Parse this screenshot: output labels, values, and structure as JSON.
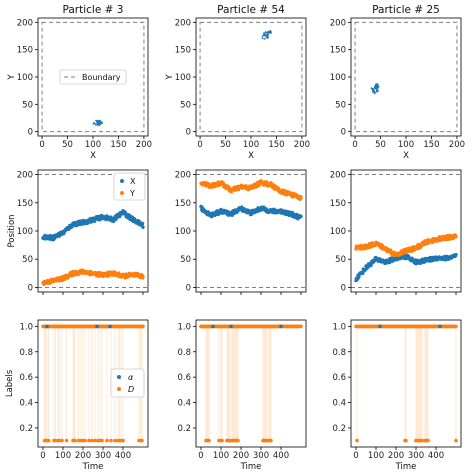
{
  "colors": {
    "blue": "#1f77b4",
    "orange": "#ff7f0e",
    "boundary": "#7f7f7f"
  },
  "chart_data": [
    {
      "type": "line",
      "title": "Particle # 3",
      "xlabel": "X",
      "ylabel": "Y",
      "xlim": [
        -8,
        208
      ],
      "ylim": [
        -8,
        208
      ],
      "xticks": [
        0,
        50,
        100,
        150,
        200
      ],
      "yticks": [
        0,
        50,
        100,
        150,
        200
      ],
      "boundary": [
        0,
        200
      ],
      "legend": [
        "Boundary"
      ],
      "legend_position": "center-right",
      "trajectory": {
        "x_center": 112,
        "y_center": 20,
        "x_spread": 22,
        "y_spread": 11
      }
    },
    {
      "type": "line",
      "title": "Particle # 54",
      "xlabel": "X",
      "ylabel": "Y",
      "xlim": [
        -8,
        208
      ],
      "ylim": [
        -8,
        208
      ],
      "xticks": [
        0,
        50,
        100,
        150,
        200
      ],
      "yticks": [
        0,
        50,
        100,
        150,
        200
      ],
      "boundary": [
        0,
        200
      ],
      "trajectory": {
        "x_center": 133,
        "y_center": 177,
        "x_spread": 11,
        "y_spread": 15
      }
    },
    {
      "type": "line",
      "title": "Particle # 25",
      "xlabel": "X",
      "ylabel": "",
      "xlim": [
        -8,
        208
      ],
      "ylim": [
        -8,
        208
      ],
      "xticks": [
        0,
        50,
        100,
        150,
        200
      ],
      "yticks": [
        0,
        50,
        100,
        150,
        200
      ],
      "boundary": [
        0,
        200
      ],
      "trajectory": {
        "x_center": 40,
        "y_center": 78,
        "x_spread": 13,
        "y_spread": 16
      }
    },
    {
      "type": "scatter",
      "title": "",
      "xlabel": "",
      "ylabel": "Position",
      "xlim": [
        -25,
        525
      ],
      "ylim": [
        -8,
        208
      ],
      "xticks": [
        0,
        100,
        200,
        300,
        400,
        500
      ],
      "yticks": [
        0,
        50,
        100,
        150,
        200
      ],
      "boundary": [
        0,
        200
      ],
      "legend": [
        "X",
        "Y"
      ],
      "legend_position": "top-right",
      "series": [
        {
          "name": "X",
          "points": [
            [
              0,
              90
            ],
            [
              50,
              88
            ],
            [
              100,
              97
            ],
            [
              150,
              112
            ],
            [
              200,
              115
            ],
            [
              250,
              120
            ],
            [
              300,
              125
            ],
            [
              350,
              120
            ],
            [
              400,
              133
            ],
            [
              450,
              120
            ],
            [
              500,
              110
            ]
          ]
        },
        {
          "name": "Y",
          "points": [
            [
              0,
              8
            ],
            [
              50,
              12
            ],
            [
              100,
              16
            ],
            [
              150,
              25
            ],
            [
              200,
              28
            ],
            [
              250,
              25
            ],
            [
              300,
              22
            ],
            [
              350,
              25
            ],
            [
              400,
              20
            ],
            [
              450,
              22
            ],
            [
              500,
              20
            ]
          ]
        }
      ]
    },
    {
      "type": "scatter",
      "title": "",
      "xlabel": "",
      "ylabel": "",
      "xlim": [
        -25,
        525
      ],
      "ylim": [
        -8,
        208
      ],
      "xticks": [
        0,
        100,
        200,
        300,
        400,
        500
      ],
      "yticks": [
        0,
        50,
        100,
        150,
        200
      ],
      "boundary": [
        0,
        200
      ],
      "series": [
        {
          "name": "X",
          "points": [
            [
              0,
              140
            ],
            [
              50,
              128
            ],
            [
              100,
              135
            ],
            [
              150,
              130
            ],
            [
              200,
              140
            ],
            [
              250,
              132
            ],
            [
              300,
              140
            ],
            [
              350,
              135
            ],
            [
              400,
              135
            ],
            [
              450,
              130
            ],
            [
              500,
              123
            ]
          ]
        },
        {
          "name": "Y",
          "points": [
            [
              0,
              185
            ],
            [
              50,
              180
            ],
            [
              100,
              185
            ],
            [
              150,
              172
            ],
            [
              200,
              178
            ],
            [
              250,
              176
            ],
            [
              300,
              186
            ],
            [
              350,
              182
            ],
            [
              400,
              170
            ],
            [
              450,
              165
            ],
            [
              500,
              158
            ]
          ]
        }
      ]
    },
    {
      "type": "scatter",
      "title": "",
      "xlabel": "",
      "ylabel": "",
      "xlim": [
        -25,
        525
      ],
      "ylim": [
        -8,
        208
      ],
      "xticks": [
        0,
        100,
        200,
        300,
        400,
        500
      ],
      "yticks": [
        0,
        50,
        100,
        150,
        200
      ],
      "boundary": [
        0,
        200
      ],
      "series": [
        {
          "name": "X",
          "points": [
            [
              0,
              15
            ],
            [
              50,
              35
            ],
            [
              100,
              50
            ],
            [
              150,
              45
            ],
            [
              200,
              52
            ],
            [
              250,
              55
            ],
            [
              300,
              45
            ],
            [
              350,
              48
            ],
            [
              400,
              52
            ],
            [
              450,
              52
            ],
            [
              500,
              55
            ]
          ]
        },
        {
          "name": "Y",
          "points": [
            [
              0,
              70
            ],
            [
              50,
              72
            ],
            [
              100,
              78
            ],
            [
              150,
              68
            ],
            [
              200,
              58
            ],
            [
              250,
              65
            ],
            [
              300,
              70
            ],
            [
              350,
              80
            ],
            [
              400,
              85
            ],
            [
              450,
              88
            ],
            [
              500,
              90
            ]
          ]
        }
      ]
    },
    {
      "type": "scatter",
      "title": "",
      "xlabel": "Time",
      "ylabel": "Labels",
      "xlim": [
        -25,
        525
      ],
      "ylim": [
        0.05,
        1.05
      ],
      "xticks": [
        0,
        100,
        200,
        300,
        400
      ],
      "yticks": [
        0.2,
        0.4,
        0.6,
        0.8,
        1.0
      ],
      "legend": [
        "α",
        "D"
      ],
      "legend_position": "center-right",
      "alpha_value": 1.0,
      "d_high": 1.0,
      "d_low": 0.1,
      "d_low_times": [
        8,
        14,
        20,
        28,
        55,
        62,
        75,
        82,
        95,
        118,
        150,
        155,
        160,
        178,
        190,
        200,
        210,
        230,
        245,
        260,
        275,
        285,
        295,
        320,
        340,
        360,
        375,
        383,
        390,
        400,
        480,
        488,
        495
      ],
      "alpha_marks": [
        20,
        270,
        335
      ]
    },
    {
      "type": "scatter",
      "title": "",
      "xlabel": "Time",
      "ylabel": "",
      "xlim": [
        -25,
        525
      ],
      "ylim": [
        0.05,
        1.05
      ],
      "xticks": [
        0,
        100,
        200,
        300,
        400
      ],
      "yticks": [
        0.2,
        0.4,
        0.6,
        0.8,
        1.0
      ],
      "alpha_value": 1.0,
      "d_high": 1.0,
      "d_low": 0.1,
      "d_low_times": [
        25,
        30,
        35,
        40,
        90,
        100,
        105,
        130,
        135,
        140,
        145,
        155,
        160,
        165,
        170,
        175,
        180,
        185,
        310,
        315,
        320,
        325,
        330,
        340,
        345,
        350
      ],
      "alpha_marks": [
        60,
        150,
        400
      ]
    },
    {
      "type": "scatter",
      "title": "",
      "xlabel": "Time",
      "ylabel": "",
      "xlim": [
        -25,
        525
      ],
      "ylim": [
        0.05,
        1.05
      ],
      "xticks": [
        0,
        100,
        200,
        300,
        400
      ],
      "yticks": [
        0.2,
        0.4,
        0.6,
        0.8,
        1.0
      ],
      "alpha_value": 1.0,
      "d_high": 1.0,
      "d_low": 0.1,
      "d_low_times": [
        5,
        245,
        250,
        300,
        305,
        310,
        315,
        320,
        325,
        330,
        345,
        350,
        355,
        360,
        500
      ],
      "alpha_marks": [
        120,
        420
      ]
    }
  ]
}
